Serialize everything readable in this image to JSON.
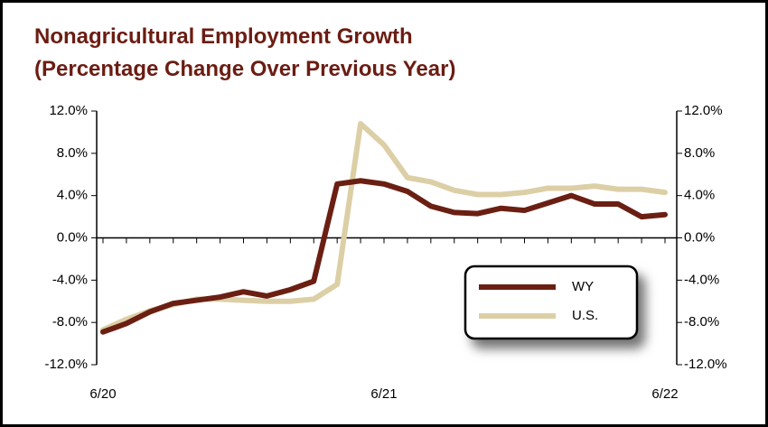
{
  "chart_data": {
    "type": "line",
    "title": "Nonagricultural Employment Growth",
    "subtitle": "(Percentage Change Over Previous Year)",
    "categories": [
      "6/20",
      null,
      null,
      null,
      null,
      null,
      null,
      null,
      null,
      null,
      null,
      null,
      "6/21",
      null,
      null,
      null,
      null,
      null,
      null,
      null,
      null,
      null,
      null,
      null,
      "6/22"
    ],
    "series": [
      {
        "name": "WY",
        "color": "#6b1f12",
        "values": [
          -8.9,
          -8.1,
          -7.0,
          -6.2,
          -5.9,
          -5.6,
          -5.1,
          -5.5,
          -4.9,
          -4.1,
          5.1,
          5.4,
          5.1,
          4.4,
          3.0,
          2.4,
          2.3,
          2.8,
          2.6,
          3.3,
          4.0,
          3.2,
          3.2,
          2.0,
          2.2
        ]
      },
      {
        "name": "U.S.",
        "color": "#dccfa6",
        "values": [
          -8.7,
          -7.7,
          -6.9,
          -6.3,
          -5.8,
          -5.8,
          -5.9,
          -6.0,
          -6.0,
          -5.8,
          -4.4,
          10.8,
          8.8,
          5.7,
          5.3,
          4.5,
          4.1,
          4.1,
          4.3,
          4.7,
          4.7,
          4.9,
          4.6,
          4.6,
          4.3
        ]
      }
    ],
    "ylim": [
      -12,
      12
    ],
    "yticks": [
      {
        "value": 12,
        "label": "12.0%"
      },
      {
        "value": 8,
        "label": "8.0%"
      },
      {
        "value": 4,
        "label": "4.0%"
      },
      {
        "value": 0,
        "label": "0.0%"
      },
      {
        "value": -4,
        "label": "-4.0%"
      },
      {
        "value": -8,
        "label": "-8.0%"
      },
      {
        "value": -12,
        "label": "-12.0%"
      }
    ],
    "y2lim": [
      -12,
      12
    ],
    "y2ticks": [
      {
        "value": 12,
        "label": "12.0%"
      },
      {
        "value": 8,
        "label": "8.0%"
      },
      {
        "value": 4,
        "label": "4.0%"
      },
      {
        "value": 0,
        "label": "0.0%"
      },
      {
        "value": -4,
        "label": "-4.0%"
      },
      {
        "value": -8,
        "label": "-8.0%"
      },
      {
        "value": -12,
        "label": "-12.0%"
      }
    ],
    "grid": false,
    "legend": "lower right"
  }
}
